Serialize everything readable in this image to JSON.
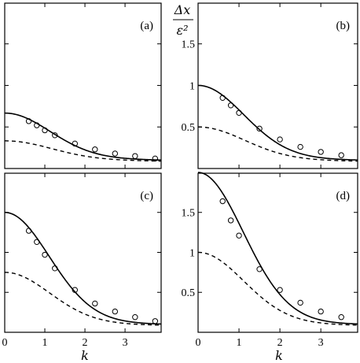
{
  "figure": {
    "ylabel_top": "Δx",
    "ylabel_bottom": "ε²",
    "xlabel_left": "k",
    "xlabel_right": "k"
  },
  "chart_data": [
    {
      "type": "line",
      "panel": "(a)",
      "xlim": [
        0,
        3.9
      ],
      "ylim": [
        0,
        1.99
      ],
      "xticks": [
        0,
        1,
        2,
        3
      ],
      "yticks": [
        0.5,
        1,
        1.5
      ],
      "x_tick_labels_shown": false,
      "y_tick_labels_shown": false,
      "curve_amplitude": 0.667,
      "dashed_amplitude": 0.333,
      "series": [
        {
          "style": "solid"
        },
        {
          "style": "dashed"
        },
        {
          "style": "circles",
          "x": [
            0.6,
            0.8,
            1.0,
            1.25,
            1.75,
            2.25,
            2.75,
            3.25,
            3.75
          ],
          "y": [
            0.57,
            0.52,
            0.46,
            0.4,
            0.3,
            0.23,
            0.18,
            0.15,
            0.12
          ]
        }
      ]
    },
    {
      "type": "line",
      "panel": "(b)",
      "xlim": [
        0,
        3.9
      ],
      "ylim": [
        0,
        1.99
      ],
      "xticks": [
        0,
        1,
        2,
        3
      ],
      "yticks": [
        0.5,
        1,
        1.5
      ],
      "x_tick_labels_shown": false,
      "y_tick_labels_shown": true,
      "y_tick_labels": [
        "0.5",
        "1",
        "1.5"
      ],
      "curve_amplitude": 1.0,
      "dashed_amplitude": 0.5,
      "series": [
        {
          "style": "solid"
        },
        {
          "style": "dashed"
        },
        {
          "style": "circles",
          "x": [
            0.6,
            0.8,
            1.0,
            1.5,
            2.0,
            2.5,
            3.0,
            3.5
          ],
          "y": [
            0.85,
            0.76,
            0.67,
            0.48,
            0.35,
            0.26,
            0.2,
            0.16
          ]
        }
      ]
    },
    {
      "type": "line",
      "panel": "(c)",
      "xlim": [
        0,
        3.9
      ],
      "ylim": [
        0,
        1.99
      ],
      "xticks": [
        0,
        1,
        2,
        3
      ],
      "yticks": [
        0.5,
        1,
        1.5
      ],
      "x_tick_labels_shown": true,
      "x_tick_labels": [
        "0",
        "1",
        "2",
        "3"
      ],
      "y_tick_labels_shown": false,
      "curve_amplitude": 1.5,
      "dashed_amplitude": 0.75,
      "series": [
        {
          "style": "solid"
        },
        {
          "style": "dashed"
        },
        {
          "style": "circles",
          "x": [
            0.6,
            0.8,
            1.0,
            1.25,
            1.75,
            2.25,
            2.75,
            3.25,
            3.75
          ],
          "y": [
            1.27,
            1.13,
            0.97,
            0.8,
            0.53,
            0.36,
            0.26,
            0.19,
            0.14
          ]
        }
      ]
    },
    {
      "type": "line",
      "panel": "(d)",
      "xlim": [
        0,
        3.9
      ],
      "ylim": [
        0,
        1.99
      ],
      "xticks": [
        0,
        1,
        2,
        3
      ],
      "yticks": [
        0.5,
        1,
        1.5
      ],
      "x_tick_labels_shown": true,
      "x_tick_labels": [
        "0",
        "1",
        "2",
        "3"
      ],
      "y_tick_labels_shown": true,
      "y_tick_labels": [
        "0.5",
        "1",
        "1.5"
      ],
      "curve_amplitude": 2.0,
      "dashed_amplitude": 1.0,
      "series": [
        {
          "style": "solid"
        },
        {
          "style": "dashed"
        },
        {
          "style": "circles",
          "x": [
            0.6,
            0.8,
            1.0,
            1.5,
            2.0,
            2.5,
            3.0,
            3.5
          ],
          "y": [
            1.64,
            1.4,
            1.21,
            0.79,
            0.53,
            0.37,
            0.26,
            0.19
          ]
        }
      ]
    }
  ]
}
